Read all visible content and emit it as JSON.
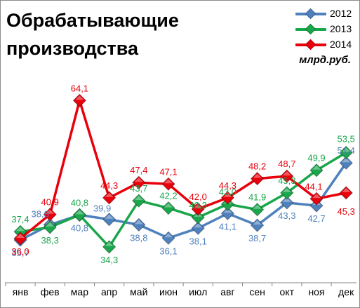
{
  "title_line1": "Обрабатывающие",
  "title_line2": "производства",
  "unit_label": "млрд.руб.",
  "chart_data": {
    "type": "line",
    "categories": [
      "янв",
      "фев",
      "мар",
      "апр",
      "май",
      "июн",
      "июл",
      "авг",
      "сен",
      "окт",
      "ноя",
      "дек"
    ],
    "ylim": [
      30,
      70
    ],
    "grid": false,
    "legend_position": "top-right",
    "series": [
      {
        "name": "2012",
        "color": "#4f81bd",
        "values": [
          35.7,
          38.8,
          40.8,
          39.9,
          38.8,
          36.1,
          38.1,
          41.1,
          38.7,
          43.3,
          42.7,
          51.4
        ],
        "labels": [
          "35,7",
          "38,8",
          "40,8",
          "39,9",
          "38,8",
          "36,1",
          "38,1",
          "41,1",
          "38,7",
          "43,3",
          "42,7",
          "51,4"
        ]
      },
      {
        "name": "2013",
        "color": "#1aa64b",
        "values": [
          37.4,
          38.3,
          40.8,
          34.3,
          43.7,
          42.2,
          40.3,
          43.0,
          41.9,
          45.3,
          49.9,
          53.5
        ],
        "labels": [
          "37,4",
          "38,3",
          "40,8",
          "34,3",
          "43,7",
          "42,2",
          "40,3",
          "43,0",
          "41,9",
          "45,3",
          "49,9",
          "53,5"
        ]
      },
      {
        "name": "2014",
        "color": "#e8000b",
        "values": [
          36.0,
          40.9,
          64.1,
          44.3,
          47.4,
          47.1,
          42.0,
          44.3,
          48.2,
          48.7,
          44.1,
          45.3
        ],
        "labels": [
          "36,0",
          "40,9",
          "64,1",
          "44,3",
          "47,4",
          "47,1",
          "42,0",
          "44,3",
          "48,2",
          "48,7",
          "44,1",
          "45,3"
        ]
      }
    ]
  }
}
